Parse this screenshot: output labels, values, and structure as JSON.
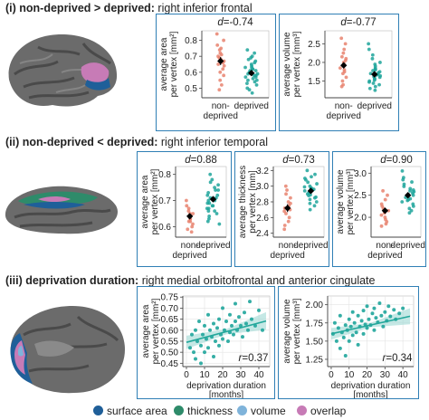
{
  "sections": [
    {
      "id": "i",
      "prefix": "(i) non-deprived > deprived:",
      "suffix": " right inferior frontal"
    },
    {
      "id": "ii",
      "prefix": "(ii) non-deprived < deprived:",
      "suffix": " right inferior temporal"
    },
    {
      "id": "iii",
      "prefix": "(iii) deprivation duration:",
      "suffix": " right medial orbitofrontal and anterior cingulate"
    }
  ],
  "legend": [
    {
      "label": "surface area",
      "color": "#1f5f99"
    },
    {
      "label": "thickness",
      "color": "#2e8b6a"
    },
    {
      "label": "volume",
      "color": "#7fb3da"
    },
    {
      "label": "overlap",
      "color": "#c77bb6"
    }
  ],
  "colors": {
    "non_deprived": "#e8826f",
    "deprived": "#1fa59b",
    "mean": "#000000",
    "fit_line": "#23a79b",
    "fit_band": "#9fd9d3",
    "box": "#2f7fb5"
  },
  "chart_data": [
    {
      "type": "scatter",
      "variant": "strip",
      "section": "i",
      "effect_label": "d=-0.74",
      "ylabel": [
        "average area",
        "per vertex [mm²]"
      ],
      "ylim": [
        0.44,
        0.86
      ],
      "yticks": [
        "0.5",
        "0.6",
        "0.7",
        "0.8"
      ],
      "ytick_values": [
        0.5,
        0.6,
        0.7,
        0.8
      ],
      "categories": [
        [
          "non-",
          "deprived"
        ],
        [
          "deprived"
        ]
      ],
      "series": [
        {
          "key": "non_deprived",
          "values": [
            0.84,
            0.8,
            0.77,
            0.75,
            0.74,
            0.72,
            0.71,
            0.7,
            0.69,
            0.68,
            0.67,
            0.66,
            0.65,
            0.64,
            0.62,
            0.6,
            0.58,
            0.55,
            0.52,
            0.49
          ],
          "mean": 0.67,
          "se": 0.025
        },
        {
          "key": "deprived",
          "values": [
            0.74,
            0.72,
            0.7,
            0.69,
            0.68,
            0.67,
            0.66,
            0.65,
            0.64,
            0.63,
            0.63,
            0.62,
            0.62,
            0.61,
            0.61,
            0.6,
            0.6,
            0.59,
            0.59,
            0.58,
            0.58,
            0.57,
            0.57,
            0.56,
            0.55,
            0.55,
            0.54,
            0.53,
            0.52,
            0.5,
            0.49,
            0.47
          ],
          "mean": 0.595,
          "se": 0.012
        }
      ]
    },
    {
      "type": "scatter",
      "variant": "strip",
      "section": "i",
      "effect_label": "d=-0.77",
      "ylabel": [
        "average volume",
        "per vertex [mm³]"
      ],
      "ylim": [
        1.05,
        2.85
      ],
      "yticks": [
        "1.5",
        "2.0",
        "2.5"
      ],
      "ytick_values": [
        1.5,
        2.0,
        2.5
      ],
      "categories": [
        [
          "non-",
          "deprived"
        ],
        [
          "deprived"
        ]
      ],
      "series": [
        {
          "key": "non_deprived",
          "values": [
            2.65,
            2.5,
            2.35,
            2.25,
            2.15,
            2.1,
            2.05,
            2.0,
            1.95,
            1.9,
            1.85,
            1.8,
            1.75,
            1.7,
            1.6,
            1.5,
            1.4,
            1.35
          ],
          "mean": 1.92,
          "se": 0.08
        },
        {
          "key": "deprived",
          "values": [
            2.5,
            2.35,
            2.2,
            2.1,
            2.0,
            1.95,
            1.9,
            1.85,
            1.82,
            1.8,
            1.78,
            1.75,
            1.72,
            1.7,
            1.68,
            1.66,
            1.64,
            1.62,
            1.6,
            1.58,
            1.55,
            1.52,
            1.5,
            1.47,
            1.44,
            1.4,
            1.35,
            1.3,
            1.25
          ],
          "mean": 1.68,
          "se": 0.04
        }
      ]
    },
    {
      "type": "scatter",
      "variant": "strip",
      "section": "ii",
      "effect_label": "d=0.88",
      "ylabel": [
        "average area",
        "per vertex [mm²]"
      ],
      "ylim": [
        0.56,
        0.83
      ],
      "yticks": [
        "0.6",
        "0.7",
        "0.8"
      ],
      "ytick_values": [
        0.6,
        0.7,
        0.8
      ],
      "categories": [
        [
          "non-",
          "deprived"
        ],
        [
          "deprived"
        ]
      ],
      "series": [
        {
          "key": "non_deprived",
          "values": [
            0.7,
            0.68,
            0.67,
            0.66,
            0.65,
            0.65,
            0.64,
            0.63,
            0.63,
            0.62,
            0.62,
            0.61,
            0.6,
            0.59,
            0.58
          ],
          "mean": 0.64,
          "se": 0.01
        },
        {
          "key": "deprived",
          "values": [
            0.8,
            0.78,
            0.77,
            0.76,
            0.75,
            0.74,
            0.74,
            0.73,
            0.72,
            0.72,
            0.71,
            0.71,
            0.7,
            0.7,
            0.69,
            0.69,
            0.68,
            0.68,
            0.67,
            0.67,
            0.66,
            0.66,
            0.65,
            0.64,
            0.63,
            0.62,
            0.61
          ],
          "mean": 0.705,
          "se": 0.009
        }
      ]
    },
    {
      "type": "scatter",
      "variant": "strip",
      "section": "ii",
      "effect_label": "d=0.73",
      "ylabel": [
        "average thickness",
        "per vertex [mm]"
      ],
      "ylim": [
        2.35,
        3.25
      ],
      "yticks": [
        "2.4",
        "2.6",
        "2.8",
        "3.0",
        "3.2"
      ],
      "ytick_values": [
        2.4,
        2.6,
        2.8,
        3.0,
        3.2
      ],
      "categories": [
        [
          "non-",
          "deprived"
        ],
        [
          "deprived"
        ]
      ],
      "series": [
        {
          "key": "non_deprived",
          "values": [
            3.0,
            2.95,
            2.9,
            2.85,
            2.8,
            2.78,
            2.75,
            2.72,
            2.7,
            2.68,
            2.65,
            2.6,
            2.55,
            2.5,
            2.45
          ],
          "mean": 2.72,
          "se": 0.05
        },
        {
          "key": "deprived",
          "values": [
            3.2,
            3.15,
            3.12,
            3.1,
            3.08,
            3.05,
            3.03,
            3.0,
            2.99,
            2.98,
            2.97,
            2.96,
            2.95,
            2.94,
            2.93,
            2.92,
            2.9,
            2.89,
            2.88,
            2.86,
            2.85,
            2.83,
            2.8,
            2.78,
            2.75,
            2.7
          ],
          "mean": 2.94,
          "se": 0.025
        }
      ]
    },
    {
      "type": "scatter",
      "variant": "strip",
      "section": "ii",
      "effect_label": "d=0.90",
      "ylabel": [
        "average volume",
        "per vertex [mm³]"
      ],
      "ylim": [
        1.55,
        3.15
      ],
      "yticks": [
        "2.0",
        "2.5",
        "3.0"
      ],
      "ytick_values": [
        2.0,
        2.5,
        3.0
      ],
      "categories": [
        [
          "non-",
          "deprived"
        ],
        [
          "deprived"
        ]
      ],
      "series": [
        {
          "key": "non_deprived",
          "values": [
            2.6,
            2.5,
            2.4,
            2.3,
            2.25,
            2.2,
            2.15,
            2.1,
            2.05,
            2.0,
            1.95,
            1.9,
            1.85,
            1.8
          ],
          "mean": 2.15,
          "se": 0.06
        },
        {
          "key": "deprived",
          "values": [
            3.05,
            2.9,
            2.85,
            2.8,
            2.75,
            2.7,
            2.65,
            2.62,
            2.6,
            2.58,
            2.55,
            2.52,
            2.5,
            2.48,
            2.45,
            2.42,
            2.4,
            2.38,
            2.35,
            2.3,
            2.25,
            2.2,
            2.15,
            2.1
          ],
          "mean": 2.5,
          "se": 0.04
        }
      ]
    },
    {
      "type": "scatter",
      "section": "iii",
      "effect_label": "r=0.37",
      "ylabel": [
        "average area",
        "per vertex [mm²]"
      ],
      "xlabel": [
        "deprivation duration",
        "[months]"
      ],
      "xlim": [
        -2,
        46
      ],
      "ylim": [
        0.435,
        0.755
      ],
      "xticks": [
        "0",
        "10",
        "20",
        "30",
        "40"
      ],
      "xtick_values": [
        0,
        10,
        20,
        30,
        40
      ],
      "yticks": [
        "0.45",
        "0.50",
        "0.55",
        "0.60",
        "0.65",
        "0.70",
        "0.75"
      ],
      "ytick_values": [
        0.45,
        0.5,
        0.55,
        0.6,
        0.65,
        0.7,
        0.75
      ],
      "fit": {
        "intercept": 0.545,
        "slope": 0.0022,
        "band": [
          0.03,
          0.012,
          0.04
        ]
      },
      "points": [
        [
          2,
          0.52
        ],
        [
          3,
          0.58
        ],
        [
          4,
          0.5
        ],
        [
          5,
          0.47
        ],
        [
          5,
          0.6
        ],
        [
          6,
          0.55
        ],
        [
          7,
          0.64
        ],
        [
          8,
          0.53
        ],
        [
          8,
          0.45
        ],
        [
          9,
          0.58
        ],
        [
          10,
          0.62
        ],
        [
          10,
          0.5
        ],
        [
          11,
          0.56
        ],
        [
          12,
          0.67
        ],
        [
          12,
          0.52
        ],
        [
          13,
          0.6
        ],
        [
          14,
          0.57
        ],
        [
          15,
          0.63
        ],
        [
          15,
          0.48
        ],
        [
          16,
          0.55
        ],
        [
          17,
          0.61
        ],
        [
          18,
          0.65
        ],
        [
          18,
          0.53
        ],
        [
          19,
          0.58
        ],
        [
          20,
          0.7
        ],
        [
          20,
          0.56
        ],
        [
          21,
          0.6
        ],
        [
          22,
          0.64
        ],
        [
          23,
          0.55
        ],
        [
          24,
          0.67
        ],
        [
          24,
          0.59
        ],
        [
          25,
          0.62
        ],
        [
          26,
          0.58
        ],
        [
          27,
          0.72
        ],
        [
          27,
          0.64
        ],
        [
          28,
          0.6
        ],
        [
          29,
          0.66
        ],
        [
          30,
          0.62
        ],
        [
          31,
          0.57
        ],
        [
          32,
          0.68
        ],
        [
          33,
          0.63
        ],
        [
          34,
          0.6
        ],
        [
          35,
          0.73
        ],
        [
          36,
          0.65
        ],
        [
          38,
          0.62
        ],
        [
          40,
          0.69
        ],
        [
          42,
          0.6
        ]
      ]
    },
    {
      "type": "scatter",
      "section": "iii",
      "effect_label": "r=0.34",
      "ylabel": [
        "average volume",
        "per vertex [mm³]"
      ],
      "xlabel": [
        "deprivation duration",
        "[months]"
      ],
      "xlim": [
        -2,
        46
      ],
      "ylim": [
        1.15,
        2.12
      ],
      "xticks": [
        "0",
        "10",
        "20",
        "30",
        "40"
      ],
      "xtick_values": [
        0,
        10,
        20,
        30,
        40
      ],
      "yticks": [
        "1.25",
        "1.50",
        "1.75",
        "2.00"
      ],
      "ytick_values": [
        1.25,
        1.5,
        1.75,
        2.0
      ],
      "fit": {
        "intercept": 1.6,
        "slope": 0.0055,
        "band": [
          0.08,
          0.03,
          0.11
        ]
      },
      "points": [
        [
          1,
          1.6
        ],
        [
          2,
          1.75
        ],
        [
          3,
          1.5
        ],
        [
          4,
          1.68
        ],
        [
          5,
          1.4
        ],
        [
          5,
          1.85
        ],
        [
          6,
          1.62
        ],
        [
          7,
          1.55
        ],
        [
          8,
          1.72
        ],
        [
          8,
          1.3
        ],
        [
          9,
          1.65
        ],
        [
          10,
          1.8
        ],
        [
          10,
          1.5
        ],
        [
          11,
          1.7
        ],
        [
          12,
          1.9
        ],
        [
          12,
          1.58
        ],
        [
          13,
          1.75
        ],
        [
          14,
          1.62
        ],
        [
          15,
          1.85
        ],
        [
          15,
          1.45
        ],
        [
          16,
          1.7
        ],
        [
          17,
          1.78
        ],
        [
          18,
          1.92
        ],
        [
          18,
          1.6
        ],
        [
          19,
          1.73
        ],
        [
          20,
          1.98
        ],
        [
          20,
          1.68
        ],
        [
          21,
          1.8
        ],
        [
          22,
          1.72
        ],
        [
          23,
          1.88
        ],
        [
          24,
          1.95
        ],
        [
          24,
          1.65
        ],
        [
          25,
          1.82
        ],
        [
          26,
          1.76
        ],
        [
          27,
          2.02
        ],
        [
          28,
          1.85
        ],
        [
          29,
          1.7
        ],
        [
          30,
          1.9
        ],
        [
          31,
          1.78
        ],
        [
          32,
          1.98
        ],
        [
          33,
          1.84
        ],
        [
          35,
          1.93
        ],
        [
          36,
          1.8
        ],
        [
          38,
          1.88
        ],
        [
          40,
          1.95
        ]
      ]
    }
  ]
}
